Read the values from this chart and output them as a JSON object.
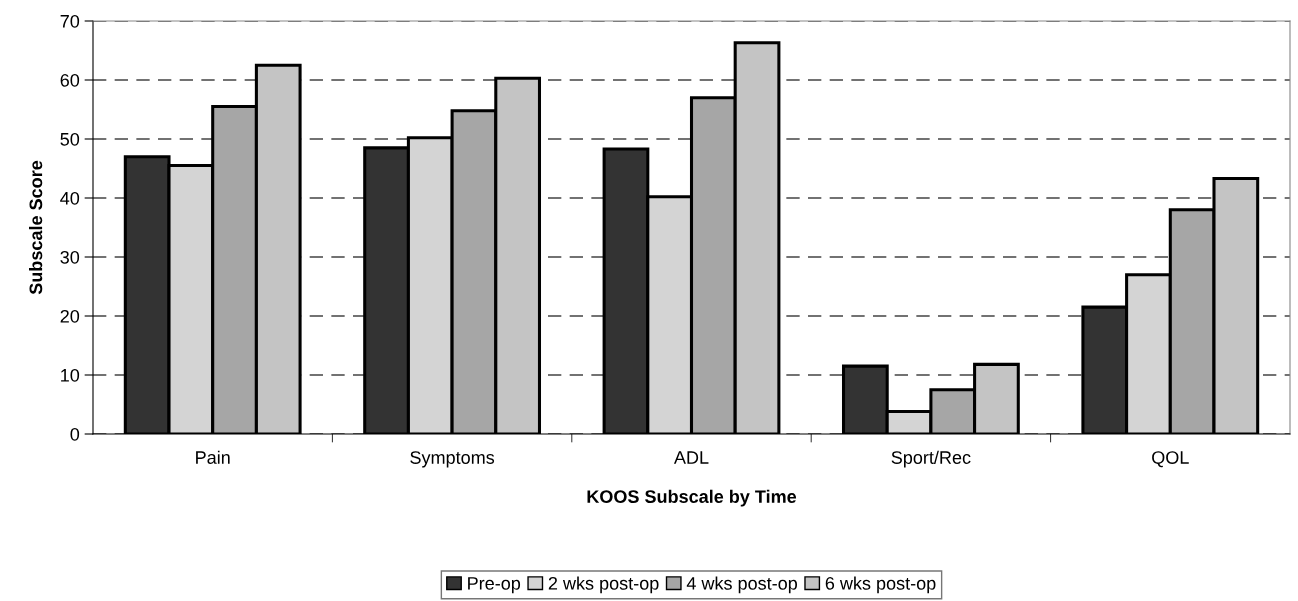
{
  "chart_data": {
    "type": "bar",
    "xlabel": "KOOS Subscale by Time",
    "ylabel": "Subscale Score",
    "categories": [
      "Pain",
      "Symptoms",
      "ADL",
      "Sport/Rec",
      "QOL"
    ],
    "series": [
      {
        "name": "Pre-op",
        "color": "#333333",
        "values": [
          47,
          48.5,
          48.3,
          11.5,
          21.5
        ]
      },
      {
        "name": "2 wks post-op",
        "color": "#d4d4d4",
        "values": [
          45.5,
          50.2,
          40.2,
          3.8,
          27
        ]
      },
      {
        "name": "4 wks post-op",
        "color": "#a6a6a6",
        "values": [
          55.5,
          54.8,
          57,
          7.5,
          38
        ]
      },
      {
        "name": "6 wks post-op",
        "color": "#c4c4c4",
        "values": [
          62.5,
          60.3,
          66.3,
          11.8,
          43.3
        ]
      }
    ],
    "ylim": [
      0,
      70
    ],
    "yticks": [
      0,
      10,
      20,
      30,
      40,
      50,
      60,
      70
    ],
    "grid": "y",
    "legend": "bottom"
  }
}
